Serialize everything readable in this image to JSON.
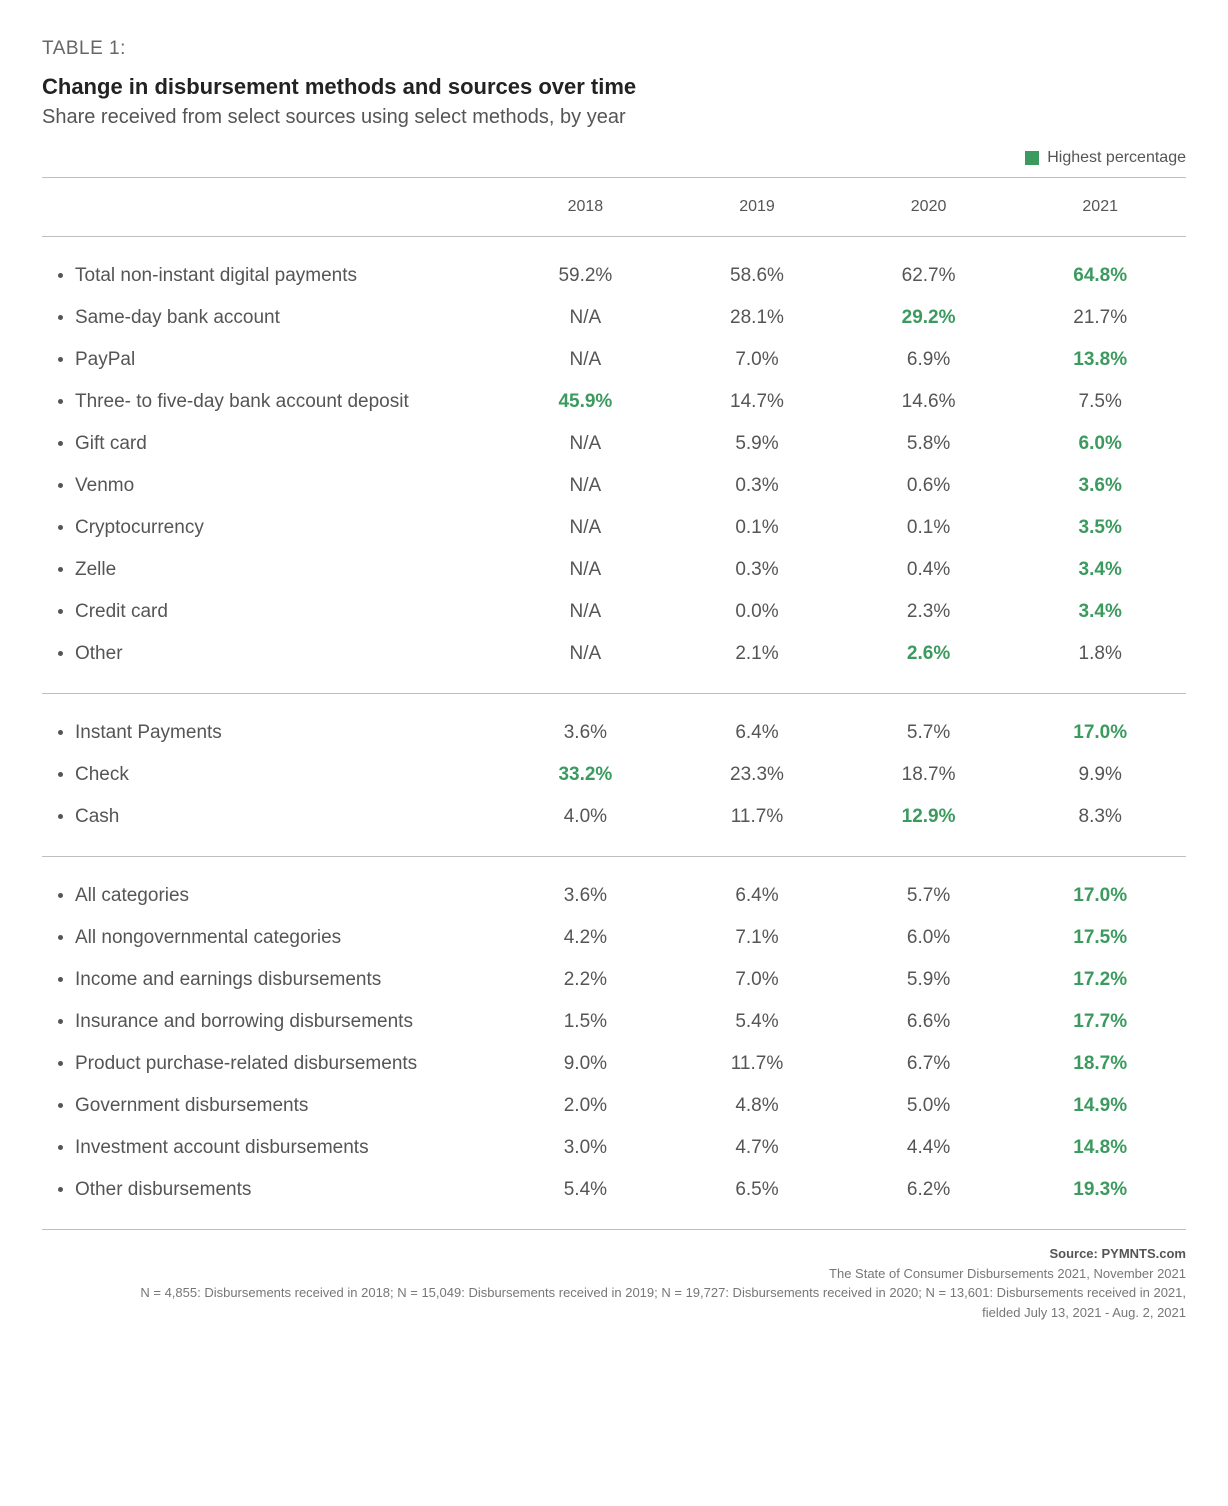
{
  "header": {
    "table_label": "TABLE 1:",
    "title": "Change in disbursement methods and sources over time",
    "subtitle": "Share received from select sources using select methods, by year",
    "legend_label": "Highest percentage"
  },
  "style": {
    "highlight_color": "#3c9a5f",
    "text_color": "#555555",
    "border_color": "#bfbfbf",
    "background_color": "#ffffff",
    "title_fontsize": 22,
    "body_fontsize": 19,
    "header_fontsize": 16,
    "footer_fontsize": 13
  },
  "columns": [
    "2018",
    "2019",
    "2020",
    "2021"
  ],
  "groups": [
    {
      "rows": [
        {
          "label": "Total non-instant digital payments",
          "values": [
            "59.2%",
            "58.6%",
            "62.7%",
            "64.8%"
          ],
          "highlight": [
            false,
            false,
            false,
            true
          ]
        },
        {
          "label": "Same-day bank account",
          "values": [
            "N/A",
            "28.1%",
            "29.2%",
            "21.7%"
          ],
          "highlight": [
            false,
            false,
            true,
            false
          ]
        },
        {
          "label": "PayPal",
          "values": [
            "N/A",
            "7.0%",
            "6.9%",
            "13.8%"
          ],
          "highlight": [
            false,
            false,
            false,
            true
          ]
        },
        {
          "label": "Three- to five-day bank account deposit",
          "values": [
            "45.9%",
            "14.7%",
            "14.6%",
            "7.5%"
          ],
          "highlight": [
            true,
            false,
            false,
            false
          ]
        },
        {
          "label": "Gift card",
          "values": [
            "N/A",
            "5.9%",
            "5.8%",
            "6.0%"
          ],
          "highlight": [
            false,
            false,
            false,
            true
          ]
        },
        {
          "label": "Venmo",
          "values": [
            "N/A",
            "0.3%",
            "0.6%",
            "3.6%"
          ],
          "highlight": [
            false,
            false,
            false,
            true
          ]
        },
        {
          "label": "Cryptocurrency",
          "values": [
            "N/A",
            "0.1%",
            "0.1%",
            "3.5%"
          ],
          "highlight": [
            false,
            false,
            false,
            true
          ]
        },
        {
          "label": "Zelle",
          "values": [
            "N/A",
            "0.3%",
            "0.4%",
            "3.4%"
          ],
          "highlight": [
            false,
            false,
            false,
            true
          ]
        },
        {
          "label": "Credit card",
          "values": [
            "N/A",
            "0.0%",
            "2.3%",
            "3.4%"
          ],
          "highlight": [
            false,
            false,
            false,
            true
          ]
        },
        {
          "label": "Other",
          "values": [
            "N/A",
            "2.1%",
            "2.6%",
            "1.8%"
          ],
          "highlight": [
            false,
            false,
            true,
            false
          ]
        }
      ]
    },
    {
      "rows": [
        {
          "label": "Instant Payments",
          "values": [
            "3.6%",
            "6.4%",
            "5.7%",
            "17.0%"
          ],
          "highlight": [
            false,
            false,
            false,
            true
          ]
        },
        {
          "label": "Check",
          "values": [
            "33.2%",
            "23.3%",
            "18.7%",
            "9.9%"
          ],
          "highlight": [
            true,
            false,
            false,
            false
          ]
        },
        {
          "label": "Cash",
          "values": [
            "4.0%",
            "11.7%",
            "12.9%",
            "8.3%"
          ],
          "highlight": [
            false,
            false,
            true,
            false
          ]
        }
      ]
    },
    {
      "rows": [
        {
          "label": "All categories",
          "values": [
            "3.6%",
            "6.4%",
            "5.7%",
            "17.0%"
          ],
          "highlight": [
            false,
            false,
            false,
            true
          ]
        },
        {
          "label": "All nongovernmental categories",
          "values": [
            "4.2%",
            "7.1%",
            "6.0%",
            "17.5%"
          ],
          "highlight": [
            false,
            false,
            false,
            true
          ]
        },
        {
          "label": "Income and earnings disbursements",
          "values": [
            "2.2%",
            "7.0%",
            "5.9%",
            "17.2%"
          ],
          "highlight": [
            false,
            false,
            false,
            true
          ]
        },
        {
          "label": "Insurance and borrowing disbursements",
          "values": [
            "1.5%",
            "5.4%",
            "6.6%",
            "17.7%"
          ],
          "highlight": [
            false,
            false,
            false,
            true
          ]
        },
        {
          "label": "Product purchase-related disbursements",
          "values": [
            "9.0%",
            "11.7%",
            "6.7%",
            "18.7%"
          ],
          "highlight": [
            false,
            false,
            false,
            true
          ]
        },
        {
          "label": "Government disbursements",
          "values": [
            "2.0%",
            "4.8%",
            "5.0%",
            "14.9%"
          ],
          "highlight": [
            false,
            false,
            false,
            true
          ]
        },
        {
          "label": "Investment account disbursements",
          "values": [
            "3.0%",
            "4.7%",
            "4.4%",
            "14.8%"
          ],
          "highlight": [
            false,
            false,
            false,
            true
          ]
        },
        {
          "label": "Other disbursements",
          "values": [
            "5.4%",
            "6.5%",
            "6.2%",
            "19.3%"
          ],
          "highlight": [
            false,
            false,
            false,
            true
          ]
        }
      ]
    }
  ],
  "footer": {
    "source_label": "Source: PYMNTS.com",
    "line1": "The State of Consumer Disbursements 2021, November 2021",
    "line2": "N = 4,855: Disbursements received in 2018; N = 15,049: Disbursements received in 2019; N = 19,727: Disbursements received in 2020; N = 13,601: Disbursements received in 2021,",
    "line3": "fielded July 13, 2021 - Aug. 2, 2021"
  }
}
